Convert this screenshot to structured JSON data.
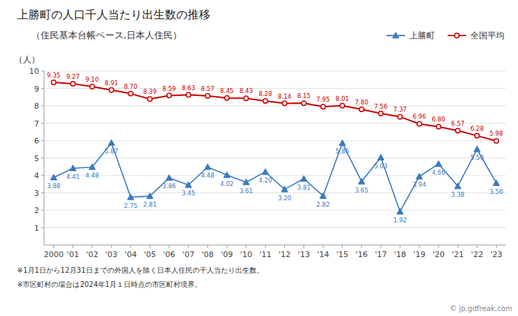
{
  "chart_data": {
    "type": "line",
    "title": "上勝町の人口千人当たり出生数の推移",
    "subtitle": "（住民基本台帳ベース,日本人住民）",
    "y_label": "（人）",
    "footnotes": [
      "※1月1日から12月31日までの外国人を除く日本人住民の千人当たり出生数。",
      "※市区町村の場合は2024年1月１日時点の市区町村境界。"
    ],
    "credit": "© jp.gdfreak.com",
    "categories": [
      "2000",
      "'01",
      "'02",
      "'03",
      "'04",
      "'05",
      "'06",
      "'07",
      "'08",
      "'09",
      "'10",
      "'11",
      "'12",
      "'13",
      "'14",
      "'15",
      "'16",
      "'17",
      "'18",
      "'19",
      "'20",
      "'21",
      "'22",
      "'23"
    ],
    "series": [
      {
        "name": "上勝町",
        "color": "#3a7abf",
        "marker": "triangle",
        "values": [
          3.88,
          4.41,
          4.48,
          5.87,
          2.75,
          2.81,
          3.86,
          3.45,
          4.48,
          4.02,
          3.61,
          4.2,
          3.2,
          3.81,
          2.82,
          5.86,
          3.65,
          5.03,
          1.92,
          3.94,
          4.66,
          3.38,
          5.5,
          3.56
        ],
        "value_labels": [
          "3.88",
          "4.41",
          "4.48",
          "5.87",
          "2.75",
          "2.81",
          "3.86",
          "3.45",
          "4.48",
          "4.02",
          "3.61",
          "4.20",
          "3.20",
          "3.81",
          "2.82",
          "5.86",
          "3.65",
          "5.03",
          "1.92",
          "3.94",
          "4.66",
          "3.38",
          "5.50",
          "3.56"
        ]
      },
      {
        "name": "全国平均",
        "color": "#cc0000",
        "marker": "circle",
        "values": [
          9.35,
          9.27,
          9.1,
          8.91,
          8.7,
          8.39,
          8.59,
          8.63,
          8.57,
          8.45,
          8.43,
          8.28,
          8.14,
          8.15,
          7.95,
          8.01,
          7.8,
          7.56,
          7.37,
          6.96,
          6.8,
          6.57,
          6.28,
          5.98
        ],
        "value_labels": [
          "9.35",
          "9.27",
          "9.10",
          "8.91",
          "8.70",
          "8.39",
          "8.59",
          "8.63",
          "8.57",
          "8.45",
          "8.43",
          "8.28",
          "8.14",
          "8.15",
          "7.95",
          "8.01",
          "7.80",
          "7.56",
          "7.37",
          "6.96",
          "6.80",
          "6.57",
          "6.28",
          "5.98"
        ]
      }
    ],
    "ylim": [
      0,
      10
    ],
    "yticks": [
      1,
      2,
      3,
      4,
      5,
      6,
      7,
      8,
      9,
      10
    ],
    "grid": true,
    "legend": "upper right",
    "data_labels": true
  }
}
